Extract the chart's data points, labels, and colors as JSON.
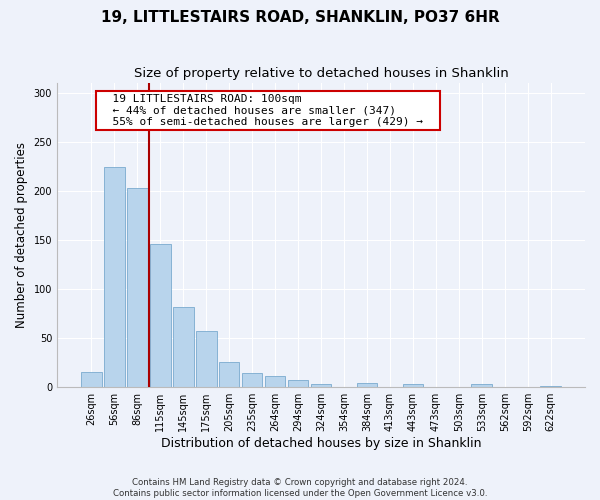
{
  "title": "19, LITTLESTAIRS ROAD, SHANKLIN, PO37 6HR",
  "subtitle": "Size of property relative to detached houses in Shanklin",
  "xlabel": "Distribution of detached houses by size in Shanklin",
  "ylabel": "Number of detached properties",
  "bar_labels": [
    "26sqm",
    "56sqm",
    "86sqm",
    "115sqm",
    "145sqm",
    "175sqm",
    "205sqm",
    "235sqm",
    "264sqm",
    "294sqm",
    "324sqm",
    "354sqm",
    "384sqm",
    "413sqm",
    "443sqm",
    "473sqm",
    "503sqm",
    "533sqm",
    "562sqm",
    "592sqm",
    "622sqm"
  ],
  "bar_values": [
    16,
    224,
    203,
    146,
    82,
    57,
    26,
    14,
    11,
    7,
    3,
    0,
    4,
    0,
    3,
    0,
    0,
    3,
    0,
    0,
    1
  ],
  "bar_color": "#b8d4ec",
  "bar_edge_color": "#7aabcf",
  "vline_x_index": 2.5,
  "vline_color": "#aa0000",
  "ylim": [
    0,
    310
  ],
  "yticks": [
    0,
    50,
    100,
    150,
    200,
    250,
    300
  ],
  "annotation_title": "19 LITTLESTAIRS ROAD: 100sqm",
  "annotation_line1": "← 44% of detached houses are smaller (347)",
  "annotation_line2": "55% of semi-detached houses are larger (429) →",
  "annotation_box_color": "#ffffff",
  "annotation_box_edge": "#cc0000",
  "footer_line1": "Contains HM Land Registry data © Crown copyright and database right 2024.",
  "footer_line2": "Contains public sector information licensed under the Open Government Licence v3.0.",
  "background_color": "#eef2fa",
  "title_fontsize": 11,
  "subtitle_fontsize": 9.5,
  "ylabel_fontsize": 8.5,
  "xlabel_fontsize": 9,
  "tick_fontsize": 7
}
